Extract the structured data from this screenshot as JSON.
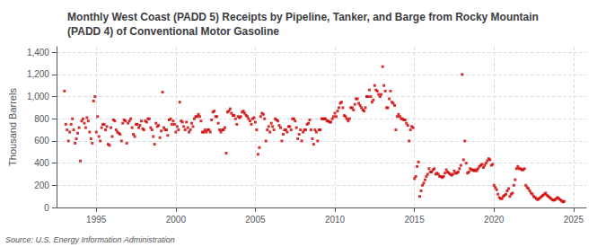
{
  "chart_data": {
    "type": "scatter",
    "title": "Monthly West Coast (PADD 5) Receipts by Pipeline, Tanker, and Barge from Rocky Mountain\n(PADD 4) of Conventional Motor Gasoline",
    "ylabel": "Thousand Barrels",
    "source": "Source: U.S. Energy Information Administration",
    "color": "#CC0000",
    "marker": "square",
    "grid": true,
    "xlim": [
      1992.5,
      2025.8
    ],
    "xticks": [
      1995,
      2000,
      2005,
      2010,
      2015,
      2020,
      2025
    ],
    "ylim": [
      0,
      1450
    ],
    "yticks": [
      0,
      200,
      400,
      600,
      800,
      {
        "value": 1000,
        "label": "1,000"
      },
      {
        "value": 1200,
        "label": "1,200"
      },
      {
        "value": 1400,
        "label": "1,400"
      }
    ],
    "x": [
      1993.0,
      1993.083,
      1993.167,
      1993.25,
      1993.333,
      1993.417,
      1993.5,
      1993.583,
      1993.667,
      1993.75,
      1993.833,
      1993.917,
      1994.0,
      1994.083,
      1994.167,
      1994.25,
      1994.333,
      1994.417,
      1994.5,
      1994.583,
      1994.667,
      1994.75,
      1994.833,
      1994.917,
      1995.0,
      1995.083,
      1995.167,
      1995.25,
      1995.333,
      1995.417,
      1995.5,
      1995.583,
      1995.667,
      1995.75,
      1995.833,
      1995.917,
      1996.0,
      1996.083,
      1996.167,
      1996.25,
      1996.333,
      1996.417,
      1996.5,
      1996.583,
      1996.667,
      1996.75,
      1996.833,
      1996.917,
      1997.0,
      1997.083,
      1997.167,
      1997.25,
      1997.333,
      1997.417,
      1997.5,
      1997.583,
      1997.667,
      1997.75,
      1997.833,
      1997.917,
      1998.0,
      1998.083,
      1998.167,
      1998.25,
      1998.333,
      1998.417,
      1998.5,
      1998.583,
      1998.667,
      1998.75,
      1998.833,
      1998.917,
      1999.0,
      1999.083,
      1999.167,
      1999.25,
      1999.333,
      1999.417,
      1999.5,
      1999.583,
      1999.667,
      1999.75,
      1999.833,
      1999.917,
      2000.0,
      2000.083,
      2000.167,
      2000.25,
      2000.333,
      2000.417,
      2000.5,
      2000.583,
      2000.667,
      2000.75,
      2000.833,
      2000.917,
      2001.0,
      2001.083,
      2001.167,
      2001.25,
      2001.333,
      2001.417,
      2001.5,
      2001.583,
      2001.667,
      2001.75,
      2001.833,
      2001.917,
      2002.0,
      2002.083,
      2002.167,
      2002.25,
      2002.333,
      2002.417,
      2002.5,
      2002.583,
      2002.667,
      2002.75,
      2002.833,
      2002.917,
      2003.0,
      2003.083,
      2003.167,
      2003.25,
      2003.333,
      2003.417,
      2003.5,
      2003.583,
      2003.667,
      2003.75,
      2003.833,
      2003.917,
      2004.0,
      2004.083,
      2004.167,
      2004.25,
      2004.333,
      2004.417,
      2004.5,
      2004.583,
      2004.667,
      2004.75,
      2004.833,
      2004.917,
      2005.0,
      2005.083,
      2005.167,
      2005.25,
      2005.333,
      2005.417,
      2005.5,
      2005.583,
      2005.667,
      2005.75,
      2005.833,
      2005.917,
      2006.0,
      2006.083,
      2006.167,
      2006.25,
      2006.333,
      2006.417,
      2006.5,
      2006.583,
      2006.667,
      2006.75,
      2006.833,
      2006.917,
      2007.0,
      2007.083,
      2007.167,
      2007.25,
      2007.333,
      2007.417,
      2007.5,
      2007.583,
      2007.667,
      2007.75,
      2007.833,
      2007.917,
      2008.0,
      2008.083,
      2008.167,
      2008.25,
      2008.333,
      2008.417,
      2008.5,
      2008.583,
      2008.667,
      2008.75,
      2008.833,
      2008.917,
      2009.0,
      2009.083,
      2009.167,
      2009.25,
      2009.333,
      2009.417,
      2009.5,
      2009.583,
      2009.667,
      2009.75,
      2009.833,
      2009.917,
      2010.0,
      2010.083,
      2010.167,
      2010.25,
      2010.333,
      2010.417,
      2010.5,
      2010.583,
      2010.667,
      2010.75,
      2010.833,
      2010.917,
      2011.0,
      2011.083,
      2011.167,
      2011.25,
      2011.333,
      2011.417,
      2011.5,
      2011.583,
      2011.667,
      2011.75,
      2011.833,
      2011.917,
      2012.0,
      2012.083,
      2012.167,
      2012.25,
      2012.333,
      2012.417,
      2012.5,
      2012.583,
      2012.667,
      2012.75,
      2012.833,
      2012.917,
      2013.0,
      2013.083,
      2013.167,
      2013.25,
      2013.333,
      2013.417,
      2013.5,
      2013.583,
      2013.667,
      2013.75,
      2013.833,
      2013.917,
      2014.0,
      2014.083,
      2014.167,
      2014.25,
      2014.333,
      2014.417,
      2014.5,
      2014.583,
      2014.667,
      2014.75,
      2014.833,
      2014.917,
      2015.0,
      2015.083,
      2015.167,
      2015.25,
      2015.333,
      2015.417,
      2015.5,
      2015.583,
      2015.667,
      2015.75,
      2015.833,
      2015.917,
      2016.0,
      2016.083,
      2016.167,
      2016.25,
      2016.333,
      2016.417,
      2016.5,
      2016.583,
      2016.667,
      2016.75,
      2016.833,
      2016.917,
      2017.0,
      2017.083,
      2017.167,
      2017.25,
      2017.333,
      2017.417,
      2017.5,
      2017.583,
      2017.667,
      2017.75,
      2017.833,
      2017.917,
      2018.0,
      2018.083,
      2018.167,
      2018.25,
      2018.333,
      2018.417,
      2018.5,
      2018.583,
      2018.667,
      2018.75,
      2018.833,
      2018.917,
      2019.0,
      2019.083,
      2019.167,
      2019.25,
      2019.333,
      2019.417,
      2019.5,
      2019.583,
      2019.667,
      2019.75,
      2019.833,
      2019.917,
      2020.0,
      2020.083,
      2020.167,
      2020.25,
      2020.333,
      2020.417,
      2020.5,
      2020.583,
      2020.667,
      2020.75,
      2020.833,
      2020.917,
      2021.0,
      2021.083,
      2021.167,
      2021.25,
      2021.333,
      2021.417,
      2021.5,
      2021.583,
      2021.667,
      2021.75,
      2021.833,
      2021.917,
      2022.0,
      2022.083,
      2022.167,
      2022.25,
      2022.333,
      2022.417,
      2022.5,
      2022.583,
      2022.667,
      2022.75,
      2022.833,
      2022.917,
      2023.0,
      2023.083,
      2023.167,
      2023.25,
      2023.333,
      2023.417,
      2023.5,
      2023.583,
      2023.667,
      2023.75,
      2023.833,
      2023.917,
      2024.0,
      2024.083,
      2024.167,
      2024.25,
      2024.333,
      2024.417
    ],
    "values": [
      1050,
      750,
      700,
      600,
      680,
      750,
      800,
      700,
      580,
      620,
      670,
      720,
      420,
      780,
      800,
      760,
      720,
      810,
      780,
      680,
      620,
      580,
      960,
      1000,
      680,
      820,
      640,
      600,
      720,
      750,
      750,
      700,
      730,
      570,
      560,
      720,
      640,
      790,
      780,
      700,
      680,
      670,
      660,
      600,
      760,
      790,
      780,
      580,
      760,
      780,
      800,
      720,
      660,
      640,
      750,
      750,
      720,
      740,
      780,
      710,
      700,
      780,
      770,
      800,
      800,
      720,
      700,
      640,
      570,
      760,
      730,
      740,
      630,
      690,
      1040,
      720,
      700,
      700,
      650,
      790,
      800,
      750,
      780,
      750,
      680,
      730,
      700,
      950,
      780,
      770,
      730,
      700,
      770,
      720,
      680,
      700,
      760,
      730,
      800,
      820,
      820,
      840,
      820,
      780,
      680,
      680,
      700,
      680,
      700,
      700,
      680,
      790,
      860,
      870,
      820,
      820,
      760,
      700,
      680,
      700,
      700,
      720,
      490,
      860,
      870,
      890,
      850,
      830,
      830,
      800,
      750,
      820,
      810,
      820,
      860,
      870,
      850,
      830,
      820,
      800,
      780,
      750,
      800,
      810,
      770,
      700,
      480,
      540,
      820,
      850,
      840,
      800,
      600,
      700,
      730,
      680,
      760,
      730,
      700,
      800,
      790,
      780,
      740,
      720,
      600,
      660,
      700,
      700,
      680,
      730,
      730,
      700,
      800,
      800,
      780,
      720,
      620,
      660,
      700,
      600,
      680,
      700,
      700,
      750,
      760,
      790,
      700,
      620,
      570,
      700,
      680,
      600,
      700,
      700,
      800,
      800,
      800,
      800,
      780,
      780,
      770,
      770,
      800,
      820,
      850,
      820,
      870,
      900,
      940,
      950,
      900,
      830,
      820,
      800,
      780,
      800,
      900,
      900,
      880,
      930,
      980,
      980,
      940,
      920,
      900,
      880,
      870,
      900,
      1000,
      1000,
      1060,
      1000,
      950,
      970,
      1100,
      1060,
      1050,
      1020,
      1000,
      1020,
      1270,
      1100,
      1050,
      900,
      900,
      980,
      1050,
      950,
      940,
      920,
      700,
      820,
      840,
      820,
      800,
      800,
      790,
      790,
      760,
      740,
      600,
      700,
      730,
      720,
      260,
      280,
      370,
      410,
      100,
      150,
      200,
      220,
      250,
      280,
      300,
      350,
      320,
      320,
      340,
      350,
      300,
      310,
      300,
      280,
      280,
      270,
      280,
      310,
      340,
      320,
      310,
      300,
      290,
      300,
      330,
      310,
      310,
      320,
      350,
      380,
      1200,
      430,
      600,
      400,
      310,
      320,
      350,
      340,
      340,
      330,
      340,
      330,
      350,
      370,
      380,
      390,
      360,
      380,
      400,
      420,
      440,
      430,
      380,
      390,
      200,
      180,
      160,
      120,
      90,
      80,
      80,
      100,
      110,
      120,
      150,
      170,
      100,
      120,
      130,
      200,
      250,
      350,
      370,
      350,
      350,
      340,
      340,
      350,
      200,
      180,
      170,
      150,
      130,
      120,
      100,
      90,
      80,
      70,
      80,
      90,
      100,
      110,
      120,
      130,
      110,
      100,
      90,
      80,
      70,
      65,
      70,
      80,
      90,
      80,
      70,
      60,
      50,
      55
    ]
  }
}
